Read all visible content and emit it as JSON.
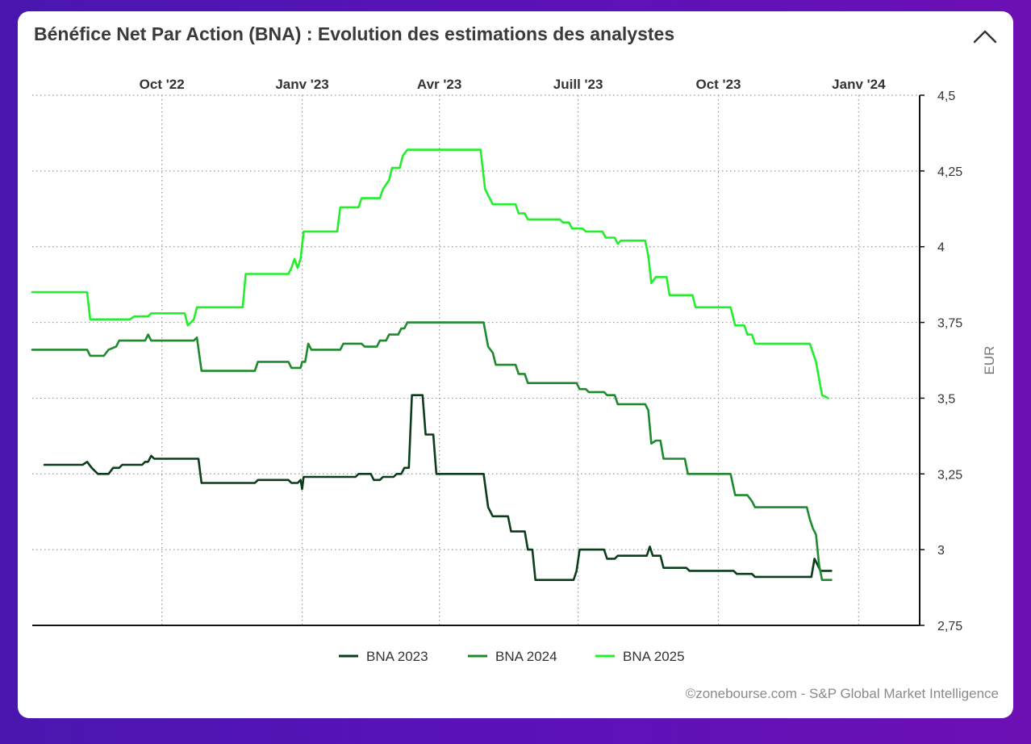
{
  "header": {
    "title": "Bénéfice Net Par Action (BNA) : Evolution des estimations des analystes",
    "collapse_icon": "chevron-up-icon"
  },
  "footer": {
    "credit": "©zonebourse.com - S&P Global Market Intelligence"
  },
  "colors": {
    "background": "#5a12b8",
    "grid": "#999999",
    "axis": "#111111",
    "text": "#333333"
  },
  "chart_data": {
    "type": "line",
    "title": "Bénéfice Net Par Action (BNA) : Evolution des estimations des analystes",
    "xlabel": "",
    "ylabel": "EUR",
    "x_range": [
      "2022-07-08",
      "2024-02-10"
    ],
    "ylim": [
      2.75,
      4.5
    ],
    "y_ticks": [
      "4,5",
      "4,25",
      "4",
      "3,75",
      "3,5",
      "3,25",
      "3",
      "2,75"
    ],
    "y_tick_values": [
      4.5,
      4.25,
      4.0,
      3.75,
      3.5,
      3.25,
      3.0,
      2.75
    ],
    "x_ticks": [
      {
        "label": "Oct '22",
        "date": "2022-10-01"
      },
      {
        "label": "Janv '23",
        "date": "2023-01-01"
      },
      {
        "label": "Avr '23",
        "date": "2023-04-01"
      },
      {
        "label": "Juill '23",
        "date": "2023-07-01"
      },
      {
        "label": "Oct '23",
        "date": "2023-10-01"
      },
      {
        "label": "Janv '24",
        "date": "2024-01-01"
      }
    ],
    "grid": true,
    "legend_position": "bottom",
    "series": [
      {
        "name": "BNA 2023",
        "color": "#0b3d1a",
        "points": [
          [
            "2022-07-16",
            3.28
          ],
          [
            "2022-08-10",
            3.28
          ],
          [
            "2022-08-13",
            3.29
          ],
          [
            "2022-08-16",
            3.27
          ],
          [
            "2022-08-20",
            3.25
          ],
          [
            "2022-08-27",
            3.25
          ],
          [
            "2022-08-30",
            3.27
          ],
          [
            "2022-09-03",
            3.27
          ],
          [
            "2022-09-05",
            3.28
          ],
          [
            "2022-09-18",
            3.28
          ],
          [
            "2022-09-20",
            3.29
          ],
          [
            "2022-09-22",
            3.29
          ],
          [
            "2022-09-24",
            3.31
          ],
          [
            "2022-09-26",
            3.3
          ],
          [
            "2022-10-25",
            3.3
          ],
          [
            "2022-10-27",
            3.22
          ],
          [
            "2022-12-01",
            3.22
          ],
          [
            "2022-12-03",
            3.23
          ],
          [
            "2022-12-23",
            3.23
          ],
          [
            "2022-12-25",
            3.22
          ],
          [
            "2022-12-29",
            3.22
          ],
          [
            "2022-12-31",
            3.23
          ],
          [
            "2023-01-01",
            3.2
          ],
          [
            "2023-01-02",
            3.24
          ],
          [
            "2023-02-05",
            3.24
          ],
          [
            "2023-02-07",
            3.25
          ],
          [
            "2023-02-15",
            3.25
          ],
          [
            "2023-02-17",
            3.23
          ],
          [
            "2023-02-21",
            3.23
          ],
          [
            "2023-02-23",
            3.24
          ],
          [
            "2023-03-02",
            3.24
          ],
          [
            "2023-03-04",
            3.25
          ],
          [
            "2023-03-07",
            3.25
          ],
          [
            "2023-03-09",
            3.27
          ],
          [
            "2023-03-12",
            3.27
          ],
          [
            "2023-03-14",
            3.51
          ],
          [
            "2023-03-21",
            3.51
          ],
          [
            "2023-03-23",
            3.38
          ],
          [
            "2023-03-28",
            3.38
          ],
          [
            "2023-03-30",
            3.25
          ],
          [
            "2023-04-30",
            3.25
          ],
          [
            "2023-05-03",
            3.14
          ],
          [
            "2023-05-06",
            3.11
          ],
          [
            "2023-05-16",
            3.11
          ],
          [
            "2023-05-18",
            3.06
          ],
          [
            "2023-05-27",
            3.06
          ],
          [
            "2023-05-29",
            3.0
          ],
          [
            "2023-06-01",
            3.0
          ],
          [
            "2023-06-03",
            2.9
          ],
          [
            "2023-06-28",
            2.9
          ],
          [
            "2023-06-30",
            2.93
          ],
          [
            "2023-07-02",
            3.0
          ],
          [
            "2023-07-18",
            3.0
          ],
          [
            "2023-07-20",
            2.97
          ],
          [
            "2023-07-25",
            2.97
          ],
          [
            "2023-07-27",
            2.98
          ],
          [
            "2023-08-15",
            2.98
          ],
          [
            "2023-08-17",
            3.01
          ],
          [
            "2023-08-19",
            2.98
          ],
          [
            "2023-08-24",
            2.98
          ],
          [
            "2023-08-26",
            2.94
          ],
          [
            "2023-09-10",
            2.94
          ],
          [
            "2023-09-12",
            2.93
          ],
          [
            "2023-10-11",
            2.93
          ],
          [
            "2023-10-13",
            2.92
          ],
          [
            "2023-10-23",
            2.92
          ],
          [
            "2023-10-25",
            2.91
          ],
          [
            "2023-12-01",
            2.91
          ],
          [
            "2023-12-03",
            2.97
          ],
          [
            "2023-12-05",
            2.95
          ],
          [
            "2023-12-07",
            2.93
          ],
          [
            "2023-12-14",
            2.93
          ]
        ]
      },
      {
        "name": "BNA 2024",
        "color": "#1d8a2e",
        "points": [
          [
            "2022-07-08",
            3.66
          ],
          [
            "2022-08-13",
            3.66
          ],
          [
            "2022-08-15",
            3.64
          ],
          [
            "2022-08-24",
            3.64
          ],
          [
            "2022-08-27",
            3.66
          ],
          [
            "2022-09-01",
            3.67
          ],
          [
            "2022-09-03",
            3.69
          ],
          [
            "2022-09-20",
            3.69
          ],
          [
            "2022-09-22",
            3.71
          ],
          [
            "2022-09-24",
            3.69
          ],
          [
            "2022-10-22",
            3.69
          ],
          [
            "2022-10-24",
            3.7
          ],
          [
            "2022-10-27",
            3.59
          ],
          [
            "2022-12-01",
            3.59
          ],
          [
            "2022-12-03",
            3.62
          ],
          [
            "2022-12-23",
            3.62
          ],
          [
            "2022-12-25",
            3.6
          ],
          [
            "2022-12-31",
            3.6
          ],
          [
            "2023-01-01",
            3.62
          ],
          [
            "2023-01-03",
            3.62
          ],
          [
            "2023-01-05",
            3.68
          ],
          [
            "2023-01-07",
            3.66
          ],
          [
            "2023-01-26",
            3.66
          ],
          [
            "2023-01-28",
            3.68
          ],
          [
            "2023-02-09",
            3.68
          ],
          [
            "2023-02-11",
            3.67
          ],
          [
            "2023-02-19",
            3.67
          ],
          [
            "2023-02-21",
            3.69
          ],
          [
            "2023-02-25",
            3.69
          ],
          [
            "2023-02-27",
            3.71
          ],
          [
            "2023-03-05",
            3.71
          ],
          [
            "2023-03-07",
            3.73
          ],
          [
            "2023-03-09",
            3.73
          ],
          [
            "2023-03-11",
            3.75
          ],
          [
            "2023-04-30",
            3.75
          ],
          [
            "2023-05-03",
            3.67
          ],
          [
            "2023-05-06",
            3.65
          ],
          [
            "2023-05-08",
            3.61
          ],
          [
            "2023-05-21",
            3.61
          ],
          [
            "2023-05-23",
            3.58
          ],
          [
            "2023-05-27",
            3.58
          ],
          [
            "2023-05-29",
            3.55
          ],
          [
            "2023-06-30",
            3.55
          ],
          [
            "2023-07-02",
            3.53
          ],
          [
            "2023-07-06",
            3.53
          ],
          [
            "2023-07-08",
            3.52
          ],
          [
            "2023-07-18",
            3.52
          ],
          [
            "2023-07-20",
            3.51
          ],
          [
            "2023-07-25",
            3.51
          ],
          [
            "2023-07-27",
            3.48
          ],
          [
            "2023-08-14",
            3.48
          ],
          [
            "2023-08-16",
            3.46
          ],
          [
            "2023-08-18",
            3.35
          ],
          [
            "2023-08-21",
            3.36
          ],
          [
            "2023-08-24",
            3.36
          ],
          [
            "2023-08-26",
            3.3
          ],
          [
            "2023-09-09",
            3.3
          ],
          [
            "2023-09-11",
            3.25
          ],
          [
            "2023-10-09",
            3.25
          ],
          [
            "2023-10-12",
            3.18
          ],
          [
            "2023-10-20",
            3.18
          ],
          [
            "2023-10-23",
            3.16
          ],
          [
            "2023-10-25",
            3.14
          ],
          [
            "2023-11-28",
            3.14
          ],
          [
            "2023-11-30",
            3.1
          ],
          [
            "2023-12-02",
            3.07
          ],
          [
            "2023-12-04",
            3.05
          ],
          [
            "2023-12-06",
            2.95
          ],
          [
            "2023-12-08",
            2.9
          ],
          [
            "2023-12-14",
            2.9
          ]
        ]
      },
      {
        "name": "BNA 2025",
        "color": "#22ee2c",
        "points": [
          [
            "2022-07-08",
            3.85
          ],
          [
            "2022-08-13",
            3.85
          ],
          [
            "2022-08-15",
            3.76
          ],
          [
            "2022-09-10",
            3.76
          ],
          [
            "2022-09-13",
            3.77
          ],
          [
            "2022-09-22",
            3.77
          ],
          [
            "2022-09-24",
            3.78
          ],
          [
            "2022-10-16",
            3.78
          ],
          [
            "2022-10-18",
            3.74
          ],
          [
            "2022-10-20",
            3.75
          ],
          [
            "2022-10-22",
            3.76
          ],
          [
            "2022-10-24",
            3.8
          ],
          [
            "2022-11-23",
            3.8
          ],
          [
            "2022-11-25",
            3.91
          ],
          [
            "2022-12-23",
            3.91
          ],
          [
            "2022-12-25",
            3.93
          ],
          [
            "2022-12-27",
            3.96
          ],
          [
            "2022-12-29",
            3.93
          ],
          [
            "2022-12-31",
            3.96
          ],
          [
            "2023-01-02",
            4.05
          ],
          [
            "2023-01-24",
            4.05
          ],
          [
            "2023-01-26",
            4.13
          ],
          [
            "2023-02-07",
            4.13
          ],
          [
            "2023-02-09",
            4.16
          ],
          [
            "2023-02-21",
            4.16
          ],
          [
            "2023-02-23",
            4.19
          ],
          [
            "2023-02-27",
            4.22
          ],
          [
            "2023-03-01",
            4.26
          ],
          [
            "2023-03-06",
            4.26
          ],
          [
            "2023-03-08",
            4.3
          ],
          [
            "2023-03-11",
            4.32
          ],
          [
            "2023-04-28",
            4.32
          ],
          [
            "2023-05-01",
            4.19
          ],
          [
            "2023-05-04",
            4.16
          ],
          [
            "2023-05-06",
            4.14
          ],
          [
            "2023-05-21",
            4.14
          ],
          [
            "2023-05-23",
            4.11
          ],
          [
            "2023-05-27",
            4.11
          ],
          [
            "2023-05-29",
            4.09
          ],
          [
            "2023-06-19",
            4.09
          ],
          [
            "2023-06-21",
            4.08
          ],
          [
            "2023-06-25",
            4.08
          ],
          [
            "2023-06-27",
            4.06
          ],
          [
            "2023-07-04",
            4.06
          ],
          [
            "2023-07-06",
            4.05
          ],
          [
            "2023-07-17",
            4.05
          ],
          [
            "2023-07-19",
            4.03
          ],
          [
            "2023-07-25",
            4.03
          ],
          [
            "2023-07-27",
            4.01
          ],
          [
            "2023-07-29",
            4.02
          ],
          [
            "2023-08-14",
            4.02
          ],
          [
            "2023-08-16",
            3.97
          ],
          [
            "2023-08-18",
            3.88
          ],
          [
            "2023-08-21",
            3.9
          ],
          [
            "2023-08-28",
            3.9
          ],
          [
            "2023-08-30",
            3.84
          ],
          [
            "2023-09-14",
            3.84
          ],
          [
            "2023-09-16",
            3.8
          ],
          [
            "2023-10-09",
            3.8
          ],
          [
            "2023-10-12",
            3.74
          ],
          [
            "2023-10-18",
            3.74
          ],
          [
            "2023-10-20",
            3.71
          ],
          [
            "2023-10-23",
            3.71
          ],
          [
            "2023-10-25",
            3.68
          ],
          [
            "2023-11-30",
            3.68
          ],
          [
            "2023-12-02",
            3.65
          ],
          [
            "2023-12-04",
            3.62
          ],
          [
            "2023-12-08",
            3.51
          ],
          [
            "2023-12-12",
            3.5
          ]
        ]
      }
    ]
  }
}
